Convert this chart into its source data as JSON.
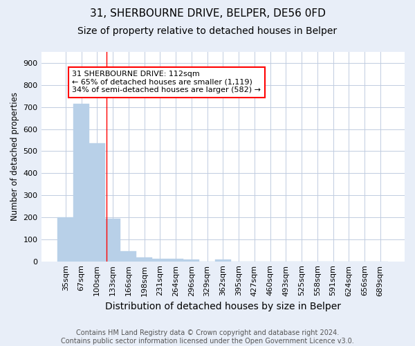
{
  "title1": "31, SHERBOURNE DRIVE, BELPER, DE56 0FD",
  "title2": "Size of property relative to detached houses in Belper",
  "xlabel": "Distribution of detached houses by size in Belper",
  "ylabel": "Number of detached properties",
  "categories": [
    "35sqm",
    "67sqm",
    "100sqm",
    "133sqm",
    "166sqm",
    "198sqm",
    "231sqm",
    "264sqm",
    "296sqm",
    "329sqm",
    "362sqm",
    "395sqm",
    "427sqm",
    "460sqm",
    "493sqm",
    "525sqm",
    "558sqm",
    "591sqm",
    "624sqm",
    "656sqm",
    "689sqm"
  ],
  "values": [
    200,
    715,
    535,
    195,
    45,
    18,
    13,
    10,
    8,
    0,
    8,
    0,
    0,
    0,
    0,
    0,
    0,
    0,
    0,
    0,
    0
  ],
  "bar_color": "#b8d0e8",
  "bar_edge_color": "#b8d0e8",
  "ylim": [
    0,
    950
  ],
  "yticks": [
    0,
    100,
    200,
    300,
    400,
    500,
    600,
    700,
    800,
    900
  ],
  "red_line_x": 2.62,
  "annotation_line1": "31 SHERBOURNE DRIVE: 112sqm",
  "annotation_line2": "← 65% of detached houses are smaller (1,119)",
  "annotation_line3": "34% of semi-detached houses are larger (582) →",
  "footnote": "Contains HM Land Registry data © Crown copyright and database right 2024.\nContains public sector information licensed under the Open Government Licence v3.0.",
  "bg_color": "#e8eef8",
  "plot_bg_color": "#ffffff",
  "grid_color": "#c0cce0",
  "title1_fontsize": 11,
  "title2_fontsize": 10,
  "xlabel_fontsize": 10,
  "ylabel_fontsize": 8.5,
  "tick_fontsize": 8,
  "annot_fontsize": 8,
  "footnote_fontsize": 7
}
